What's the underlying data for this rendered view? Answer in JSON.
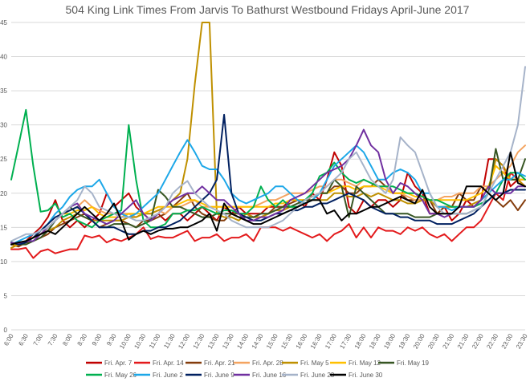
{
  "chart_data": {
    "type": "line",
    "title": "504 King Link Times From Jarvis To Bathurst Westbound Fridays April-June 2017",
    "xlabel": "",
    "ylabel": "",
    "ylim": [
      0,
      45
    ],
    "yticks": [
      0,
      5,
      10,
      15,
      20,
      25,
      30,
      35,
      40,
      45
    ],
    "grid": "horizontal",
    "legend_position": "bottom",
    "categories": [
      "6:00",
      "6:30",
      "7:00",
      "7:30",
      "8:00",
      "8:30",
      "9:00",
      "9:30",
      "10:00",
      "10:30",
      "11:00",
      "11:30",
      "12:00",
      "12:30",
      "13:00",
      "13:30",
      "14:00",
      "14:30",
      "15:00",
      "15:30",
      "16:00",
      "16:30",
      "17:00",
      "17:30",
      "18:00",
      "18:30",
      "19:00",
      "19:30",
      "20:00",
      "20:30",
      "21:00",
      "21:30",
      "22:00",
      "22:30",
      "23:00",
      "23:30"
    ],
    "x": [
      6.0,
      6.25,
      6.5,
      6.75,
      7.0,
      7.25,
      7.5,
      7.75,
      8.0,
      8.25,
      8.5,
      8.75,
      9.0,
      9.25,
      9.5,
      9.75,
      10.0,
      10.25,
      10.5,
      10.75,
      11.0,
      11.25,
      11.5,
      11.75,
      12.0,
      12.25,
      12.5,
      12.75,
      13.0,
      13.25,
      13.5,
      13.75,
      14.0,
      14.25,
      14.5,
      14.75,
      15.0,
      15.25,
      15.5,
      15.75,
      16.0,
      16.25,
      16.5,
      16.75,
      17.0,
      17.25,
      17.5,
      17.75,
      18.0,
      18.25,
      18.5,
      18.75,
      19.0,
      19.25,
      19.5,
      19.75,
      20.0,
      20.25,
      20.5,
      20.75,
      21.0,
      21.25,
      21.5,
      21.75,
      22.0,
      22.25,
      22.5,
      22.75,
      23.0,
      23.25,
      23.5
    ],
    "series": [
      {
        "name": "Fri. Apr. 7",
        "color": "#c00000",
        "values": [
          12.5,
          12.2,
          13,
          14,
          15,
          16.5,
          19,
          16,
          15,
          16,
          15,
          16,
          17,
          20,
          18,
          19,
          20,
          18,
          17,
          16,
          17,
          16,
          17,
          17,
          16,
          17,
          18,
          17,
          16,
          18,
          17,
          18,
          17,
          17,
          17,
          18,
          18,
          18,
          19,
          19,
          18,
          20,
          19,
          22,
          26,
          24,
          18,
          17,
          19,
          18,
          19,
          19,
          18,
          19,
          23,
          21,
          20,
          17,
          17,
          18,
          16,
          17,
          19,
          18,
          19,
          25,
          25,
          24,
          21,
          22,
          21
        ]
      },
      {
        "name": "Fri. Apr. 14",
        "color": "#e31a1c",
        "values": [
          11.8,
          11.8,
          12,
          10.5,
          11.5,
          11.8,
          11.2,
          11.5,
          11.8,
          11.8,
          13.8,
          13.5,
          13.8,
          12.8,
          13.3,
          13,
          13.5,
          14,
          15,
          13.3,
          13.7,
          13.5,
          13.5,
          14,
          14.5,
          13,
          13.5,
          13.5,
          14,
          13,
          13.5,
          13.5,
          14,
          13,
          15,
          15,
          15,
          14.5,
          15,
          14.5,
          14,
          13.5,
          14,
          13,
          14,
          14.5,
          15.5,
          13.5,
          15,
          13.5,
          15,
          14.5,
          14.5,
          14,
          15,
          14.5,
          15,
          14,
          13.5,
          14,
          13,
          14,
          15,
          15,
          16,
          18,
          20,
          19,
          23,
          22,
          22
        ]
      },
      {
        "name": "Fri. Apr. 21",
        "color": "#843c0c",
        "values": [
          12.5,
          12.2,
          12.8,
          13,
          13.5,
          14,
          15,
          15.5,
          16,
          16.5,
          17,
          16,
          15,
          15.5,
          16,
          16,
          15.5,
          15,
          16,
          16,
          16.5,
          17,
          18,
          19,
          20,
          18,
          17,
          16.5,
          16,
          16,
          17,
          17,
          17,
          16.5,
          16.5,
          17,
          18,
          18,
          18.5,
          19,
          19,
          19.5,
          20,
          20,
          21,
          21,
          20,
          20,
          21,
          21,
          22,
          21,
          20,
          20,
          19,
          19,
          19,
          19,
          17,
          18,
          18,
          20,
          19,
          19,
          21,
          20,
          19,
          18,
          19,
          17.5,
          19
        ]
      },
      {
        "name": "Fri. Apr. 28",
        "color": "#f4a460",
        "values": [
          12,
          12.5,
          13,
          13.5,
          14,
          15,
          16,
          17,
          17.5,
          18,
          19,
          18,
          17.5,
          17,
          17,
          17,
          17,
          16.5,
          17,
          17,
          17.5,
          17,
          18,
          18,
          18.5,
          19,
          18,
          18,
          18,
          18,
          18,
          18,
          18,
          18,
          18.5,
          19,
          19,
          19.5,
          20,
          20,
          20,
          20.5,
          21,
          21,
          22,
          22,
          21.5,
          21,
          22,
          21.5,
          21,
          21,
          20,
          20,
          19.5,
          19,
          19,
          19,
          19,
          19.5,
          19.5,
          20,
          20,
          20,
          21,
          21,
          22,
          23,
          24,
          26,
          27
        ]
      },
      {
        "name": "Fri. May 5",
        "color": "#bf9000",
        "values": [
          12,
          12.5,
          13,
          13.5,
          14,
          14.5,
          15,
          16,
          16.5,
          17,
          16.5,
          16,
          16,
          16,
          16,
          16,
          16.5,
          16.5,
          17,
          17,
          17.5,
          18,
          19,
          20,
          25,
          36,
          45,
          45,
          17,
          16.5,
          16.5,
          16,
          17,
          16.5,
          16.5,
          17,
          17.5,
          17.5,
          18,
          18,
          18.5,
          19,
          19,
          19,
          20,
          20,
          19.5,
          19.5,
          20,
          19.5,
          20,
          19.5,
          19,
          19,
          18.5,
          18.5,
          19,
          19,
          18,
          18,
          18,
          18,
          18,
          18.5,
          19,
          20,
          25,
          24,
          22,
          22,
          21
        ]
      },
      {
        "name": "Fri. May 12",
        "color": "#ffc000",
        "values": [
          12.5,
          12.5,
          13,
          13.5,
          14,
          15,
          16,
          17,
          17,
          17.5,
          17.5,
          18,
          17,
          16.5,
          16.5,
          16.5,
          17,
          17,
          17,
          17.5,
          18,
          18,
          18,
          18.5,
          19,
          19,
          18.5,
          18,
          18,
          18,
          18,
          18,
          18,
          18,
          18,
          18,
          18.5,
          18.5,
          19,
          19,
          19,
          19.5,
          20,
          20,
          20.5,
          21,
          21,
          20.5,
          21,
          21,
          21,
          20.5,
          20,
          20,
          20,
          19.5,
          19.5,
          19,
          19,
          19,
          19,
          19,
          19,
          19.5,
          20,
          21,
          24,
          23,
          22,
          22,
          22
        ]
      },
      {
        "name": "Fri. May 19",
        "color": "#375623",
        "values": [
          12.8,
          12.5,
          12.5,
          13,
          13.5,
          14.5,
          16,
          17,
          18,
          17,
          16.5,
          16,
          15,
          15,
          15.5,
          15.5,
          15.5,
          15,
          15.5,
          16,
          20.5,
          19.5,
          18,
          18,
          17.5,
          17,
          16.5,
          16.5,
          17,
          17,
          17,
          16.5,
          16.5,
          16.5,
          17,
          17,
          17.5,
          18,
          18,
          18.5,
          19,
          19,
          20,
          20,
          22,
          21,
          16.5,
          21,
          20,
          19,
          18,
          17,
          17,
          17,
          17,
          16.5,
          16.5,
          16.5,
          17,
          17,
          17,
          17,
          17,
          17.5,
          18,
          20,
          26.5,
          22,
          22,
          22,
          25
        ]
      },
      {
        "name": "Fri. May 26",
        "color": "#00b050",
        "values": [
          22,
          27,
          32.2,
          24,
          17.3,
          17.5,
          18.5,
          16.5,
          17,
          16,
          15.5,
          15,
          16,
          16.5,
          17,
          17.5,
          30,
          22,
          16,
          15,
          15,
          15.5,
          17,
          17,
          17.5,
          17.5,
          18,
          17.5,
          17,
          17.5,
          17.5,
          17,
          17,
          18,
          21,
          19,
          18,
          19,
          18,
          18,
          19,
          20,
          22.5,
          23,
          24.5,
          23,
          22,
          21.5,
          22,
          21.5,
          21,
          21,
          21,
          20.5,
          20,
          20,
          19.5,
          19,
          19,
          18.5,
          18,
          18,
          18,
          18,
          18.5,
          19,
          20,
          22,
          23,
          23,
          22
        ]
      },
      {
        "name": "Fri. June 2",
        "color": "#1ca7e8",
        "values": [
          12.5,
          13,
          13.5,
          14,
          14.5,
          15.5,
          17,
          18,
          19.5,
          20.5,
          21,
          21,
          22,
          20,
          18,
          17,
          16.5,
          17,
          18,
          19,
          20,
          22,
          24,
          26,
          27.8,
          26,
          24,
          23.5,
          23.5,
          22,
          20,
          19,
          18.5,
          19,
          19.5,
          20,
          21,
          21,
          20,
          19,
          18.5,
          19,
          20,
          22,
          24,
          25,
          26,
          27,
          26,
          24,
          22,
          22,
          23,
          23.5,
          23,
          22,
          20,
          20,
          18,
          18,
          17.5,
          18,
          18,
          18,
          19,
          20,
          21,
          22,
          22,
          23,
          22.5
        ]
      },
      {
        "name": "Fri. June 9",
        "color": "#002060",
        "values": [
          12.8,
          12.5,
          12.8,
          13.5,
          14.5,
          15.5,
          16.5,
          17,
          17.5,
          18,
          17,
          16,
          15,
          15,
          15,
          14.5,
          14,
          14,
          14.5,
          14.5,
          15,
          15,
          15.5,
          16,
          17,
          18,
          19,
          20,
          22,
          31.5,
          20,
          17,
          16.5,
          16,
          16,
          16.5,
          17,
          17,
          17.5,
          17.5,
          18,
          18,
          18.5,
          18.5,
          19,
          19.5,
          20,
          19.5,
          19,
          18,
          17.5,
          17,
          17,
          16.5,
          16.5,
          16,
          16,
          16,
          15.5,
          15.5,
          15.5,
          16,
          16.5,
          17,
          18,
          19,
          20,
          20,
          20.5,
          20.5,
          20.5
        ]
      },
      {
        "name": "Fri. June 16",
        "color": "#7030a0",
        "values": [
          12.7,
          12.7,
          13,
          13,
          14,
          15,
          16,
          17,
          18,
          18.5,
          17,
          16.5,
          16,
          15.5,
          16,
          17,
          18,
          19,
          17,
          16,
          17,
          18,
          19,
          19.5,
          20,
          20,
          21,
          20,
          19,
          19,
          18,
          17,
          16,
          16,
          16.5,
          16.5,
          17,
          17.5,
          19,
          19.5,
          20,
          21,
          22,
          23,
          23.5,
          24,
          25,
          27,
          29.3,
          27,
          26,
          22,
          20,
          21.5,
          21,
          20,
          19,
          17,
          17,
          16.5,
          17,
          18,
          18,
          18,
          19,
          21,
          20,
          20,
          20,
          21,
          21
        ]
      },
      {
        "name": "Fri. June 23",
        "color": "#a6b3c9",
        "values": [
          13,
          13.5,
          14,
          14,
          14.5,
          15,
          16,
          17,
          18,
          19,
          21,
          20,
          18,
          17.5,
          17,
          16.5,
          16.5,
          16,
          16,
          16.5,
          17,
          18,
          20,
          21,
          21.8,
          20,
          19,
          18,
          17.5,
          17,
          16,
          15.5,
          15,
          15,
          15,
          15,
          15.5,
          16,
          17,
          18,
          19,
          19.5,
          20,
          21,
          22,
          23,
          25,
          26,
          24,
          22,
          21,
          20,
          22,
          28.2,
          27,
          26,
          23,
          20,
          18,
          17,
          17,
          17,
          17,
          17.5,
          18,
          20,
          22,
          24,
          26,
          30,
          38.5
        ]
      },
      {
        "name": "Fri. June 30",
        "color": "#000000",
        "values": [
          12.5,
          12.8,
          13,
          13.5,
          14,
          14.5,
          14,
          15,
          16,
          17,
          18,
          17,
          16,
          17,
          18.5,
          16,
          13.2,
          14,
          14.5,
          14,
          14.5,
          14.8,
          14.8,
          15,
          15,
          15.5,
          16,
          17,
          14.5,
          18.5,
          17,
          16.5,
          16,
          15.5,
          15.5,
          16,
          16.5,
          17,
          17.5,
          18,
          18.5,
          19,
          19,
          17,
          17.5,
          16,
          17,
          17,
          17.5,
          18,
          18,
          18.5,
          19,
          19.5,
          19,
          18.5,
          20.5,
          18,
          17,
          17,
          17,
          18,
          21,
          21,
          21,
          20,
          19,
          20,
          26,
          21.5,
          21
        ]
      }
    ]
  }
}
